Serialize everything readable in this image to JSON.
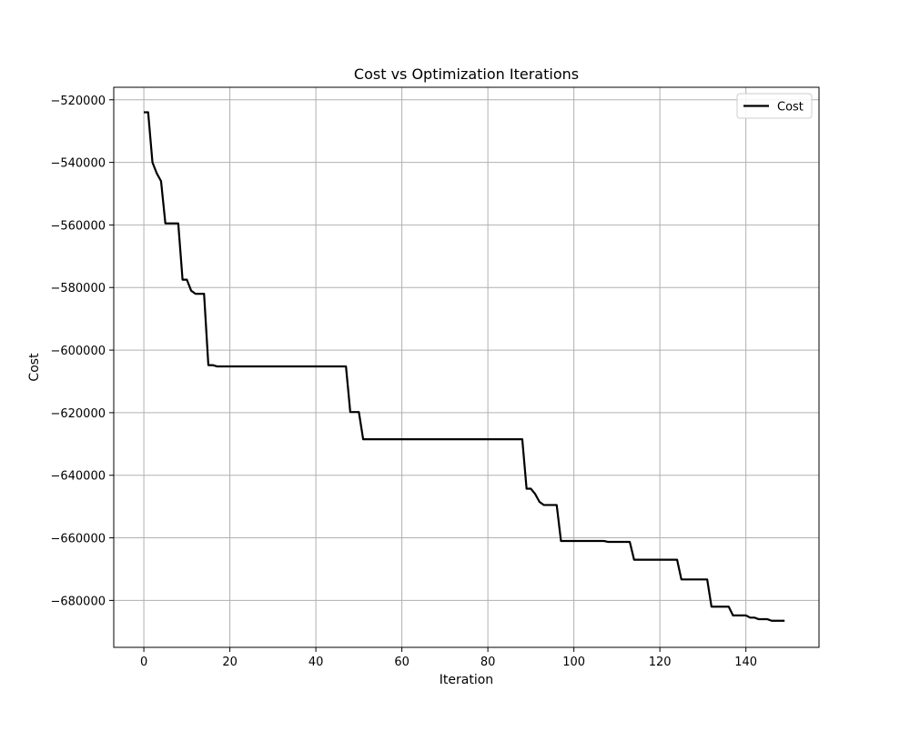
{
  "chart_data": {
    "type": "line",
    "title": "Cost vs Optimization Iterations",
    "xlabel": "Iteration",
    "ylabel": "Cost",
    "xlim": [
      -7,
      157
    ],
    "ylim": [
      -695000,
      -516000
    ],
    "x_ticks": [
      0,
      20,
      40,
      60,
      80,
      100,
      120,
      140
    ],
    "y_ticks": [
      -520000,
      -540000,
      -560000,
      -580000,
      -600000,
      -620000,
      -640000,
      -660000,
      -680000
    ],
    "grid": true,
    "legend": {
      "position": "top-right"
    },
    "series": [
      {
        "name": "Cost",
        "color": "#000000",
        "points": [
          [
            0,
            -524000
          ],
          [
            1,
            -524000
          ],
          [
            2,
            -540000
          ],
          [
            3,
            -543500
          ],
          [
            4,
            -546000
          ],
          [
            5,
            -559500
          ],
          [
            8,
            -559500
          ],
          [
            9,
            -577500
          ],
          [
            10,
            -577500
          ],
          [
            11,
            -581000
          ],
          [
            12,
            -582000
          ],
          [
            14,
            -582000
          ],
          [
            15,
            -604800
          ],
          [
            16,
            -604800
          ],
          [
            17,
            -605200
          ],
          [
            47,
            -605200
          ],
          [
            48,
            -619800
          ],
          [
            50,
            -619800
          ],
          [
            51,
            -628500
          ],
          [
            88,
            -628500
          ],
          [
            89,
            -644300
          ],
          [
            90,
            -644300
          ],
          [
            91,
            -646000
          ],
          [
            92,
            -648500
          ],
          [
            93,
            -649500
          ],
          [
            96,
            -649500
          ],
          [
            97,
            -661000
          ],
          [
            107,
            -661000
          ],
          [
            108,
            -661300
          ],
          [
            113,
            -661300
          ],
          [
            114,
            -667000
          ],
          [
            124,
            -667000
          ],
          [
            125,
            -673300
          ],
          [
            131,
            -673300
          ],
          [
            132,
            -682000
          ],
          [
            136,
            -682000
          ],
          [
            137,
            -684800
          ],
          [
            140,
            -684800
          ],
          [
            141,
            -685500
          ],
          [
            142,
            -685500
          ],
          [
            143,
            -686000
          ],
          [
            145,
            -686000
          ],
          [
            146,
            -686500
          ],
          [
            149,
            -686500
          ]
        ]
      }
    ]
  }
}
